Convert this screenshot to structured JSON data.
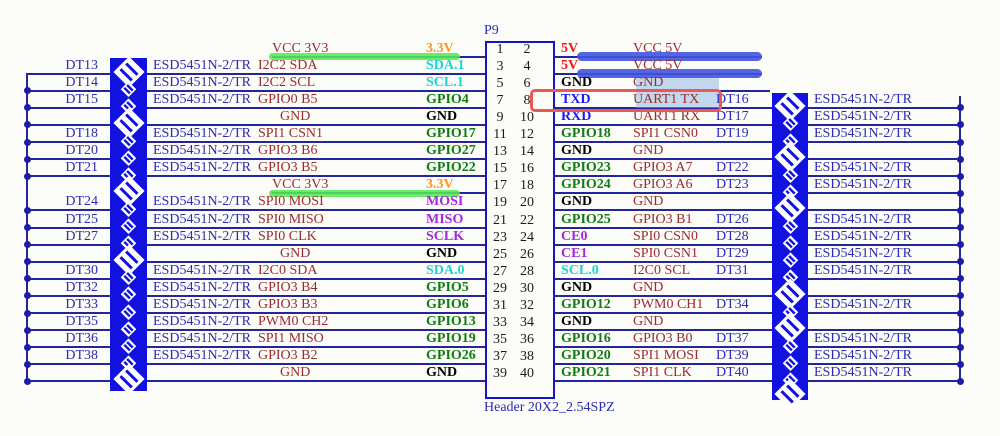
{
  "connector": {
    "designator": "P9",
    "footprint": "Header 20X2_2.54SPZ",
    "esd_part": "ESD5451N-2/TR"
  },
  "colors": {
    "wire": "#24249B",
    "schematic_blue": "#2B2BB5",
    "diode_band": "#1212E0",
    "net_name": "#9B2C2C",
    "label_green": "#117C11",
    "label_orange": "#FF9718",
    "label_cyan": "#1ED3D3",
    "label_violet": "#A428E0",
    "label_red": "#F81414",
    "label_blue": "#1919FF",
    "label_black": "#000000",
    "highlight_green": "#55E855",
    "highlight_blue": "#4353DE",
    "selection_fill": "#8CB4E1",
    "marker_red_box": "#EC5858"
  },
  "rows": [
    {
      "left": {
        "pin": 1,
        "label": "3.3V",
        "color": "orange",
        "net": "VCC_3V3",
        "dt": null,
        "esd": false,
        "conn": "label",
        "glyph": null,
        "hl": "green"
      },
      "right": {
        "pin": 2,
        "label": "5V",
        "color": "red",
        "net": "VCC_5V",
        "dt": null,
        "esd": false,
        "conn": "half",
        "glyph": null,
        "hl": "blue"
      }
    },
    {
      "left": {
        "pin": 3,
        "label": "SDA.1",
        "color": "cyan",
        "net": "I2C2_SDA",
        "dt": "DT13",
        "esd": true,
        "conn": "bus",
        "glyph": "b",
        "hl": null
      },
      "right": {
        "pin": 4,
        "label": "5V",
        "color": "red",
        "net": "VCC_5V",
        "dt": null,
        "esd": false,
        "conn": "half",
        "glyph": null,
        "hl": "blue"
      }
    },
    {
      "left": {
        "pin": 5,
        "label": "SCL.1",
        "color": "cyan",
        "net": "I2C2_SCL",
        "dt": "DT14",
        "esd": true,
        "conn": "bus",
        "glyph": "s",
        "hl": null
      },
      "right": {
        "pin": 6,
        "label": "GND",
        "color": "black",
        "net": "GND",
        "dt": null,
        "esd": false,
        "conn": "half",
        "glyph": null,
        "hl": null
      }
    },
    {
      "left": {
        "pin": 7,
        "label": "GPIO4",
        "color": "green",
        "net": "GPIO0_B5",
        "dt": "DT15",
        "esd": true,
        "conn": "bus",
        "glyph": "s",
        "hl": null
      },
      "right": {
        "pin": 8,
        "label": "TXD",
        "color": "blue",
        "net": "UART1_TX",
        "dt": "DT16",
        "esd": true,
        "conn": "bus",
        "glyph": "b",
        "hl": null,
        "selected": true,
        "marked": true
      }
    },
    {
      "left": {
        "pin": 9,
        "label": "GND",
        "color": "black",
        "net": "GND",
        "dt": null,
        "esd": false,
        "conn": "bus",
        "glyph": "b",
        "hl": null
      },
      "right": {
        "pin": 10,
        "label": "RXD",
        "color": "blue",
        "net": "UART1_RX",
        "dt": "DT17",
        "esd": true,
        "conn": "bus",
        "glyph": "s",
        "hl": null
      }
    },
    {
      "left": {
        "pin": 11,
        "label": "GPIO17",
        "color": "green",
        "net": "SPI1_CSN1",
        "dt": "DT18",
        "esd": true,
        "conn": "bus",
        "glyph": "s",
        "hl": null
      },
      "right": {
        "pin": 12,
        "label": "GPIO18",
        "color": "green",
        "net": "SPI1_CSN0",
        "dt": "DT19",
        "esd": true,
        "conn": "bus",
        "glyph": "s",
        "hl": null
      }
    },
    {
      "left": {
        "pin": 13,
        "label": "GPIO27",
        "color": "green",
        "net": "GPIO3_B6",
        "dt": "DT20",
        "esd": true,
        "conn": "bus",
        "glyph": "s",
        "hl": null
      },
      "right": {
        "pin": 14,
        "label": "GND",
        "color": "black",
        "net": "GND",
        "dt": null,
        "esd": false,
        "conn": "bus",
        "glyph": "b",
        "hl": null
      }
    },
    {
      "left": {
        "pin": 15,
        "label": "GPIO22",
        "color": "green",
        "net": "GPIO3_B5",
        "dt": "DT21",
        "esd": true,
        "conn": "bus",
        "glyph": "s",
        "hl": null
      },
      "right": {
        "pin": 16,
        "label": "GPIO23",
        "color": "green",
        "net": "GPIO3_A7",
        "dt": "DT22",
        "esd": true,
        "conn": "bus",
        "glyph": "s",
        "hl": null
      }
    },
    {
      "left": {
        "pin": 17,
        "label": "3.3V",
        "color": "orange",
        "net": "VCC_3V3",
        "dt": null,
        "esd": false,
        "conn": "label",
        "glyph": "b",
        "hl": "green"
      },
      "right": {
        "pin": 18,
        "label": "GPIO24",
        "color": "green",
        "net": "GPIO3_A6",
        "dt": "DT23",
        "esd": true,
        "conn": "bus",
        "glyph": "s",
        "hl": null
      }
    },
    {
      "left": {
        "pin": 19,
        "label": "MOSI",
        "color": "violet",
        "net": "SPI0_MOSI",
        "dt": "DT24",
        "esd": true,
        "conn": "bus",
        "glyph": "s",
        "hl": null
      },
      "right": {
        "pin": 20,
        "label": "GND",
        "color": "black",
        "net": "GND",
        "dt": null,
        "esd": false,
        "conn": "bus",
        "glyph": "b",
        "hl": null
      }
    },
    {
      "left": {
        "pin": 21,
        "label": "MISO",
        "color": "violet",
        "net": "SPI0_MISO",
        "dt": "DT25",
        "esd": true,
        "conn": "bus",
        "glyph": "s",
        "hl": null
      },
      "right": {
        "pin": 22,
        "label": "GPIO25",
        "color": "green",
        "net": "GPIO3_B1",
        "dt": "DT26",
        "esd": true,
        "conn": "bus",
        "glyph": "s",
        "hl": null
      }
    },
    {
      "left": {
        "pin": 23,
        "label": "SCLK",
        "color": "violet",
        "net": "SPI0_CLK",
        "dt": "DT27",
        "esd": true,
        "conn": "bus",
        "glyph": "s",
        "hl": null
      },
      "right": {
        "pin": 24,
        "label": "CE0",
        "color": "violet",
        "net": "SPI0_CSN0",
        "dt": "DT28",
        "esd": true,
        "conn": "bus",
        "glyph": "s",
        "hl": null
      }
    },
    {
      "left": {
        "pin": 25,
        "label": "GND",
        "color": "black",
        "net": "GND",
        "dt": null,
        "esd": false,
        "conn": "bus",
        "glyph": "b",
        "hl": null
      },
      "right": {
        "pin": 26,
        "label": "CE1",
        "color": "violet",
        "net": "SPI0_CSN1",
        "dt": "DT29",
        "esd": true,
        "conn": "bus",
        "glyph": "s",
        "hl": null
      }
    },
    {
      "left": {
        "pin": 27,
        "label": "SDA.0",
        "color": "cyan",
        "net": "I2C0_SDA",
        "dt": "DT30",
        "esd": true,
        "conn": "bus",
        "glyph": "s",
        "hl": null
      },
      "right": {
        "pin": 28,
        "label": "SCL.0",
        "color": "cyan",
        "net": "I2C0_SCL",
        "dt": "DT31",
        "esd": true,
        "conn": "bus",
        "glyph": "s",
        "hl": null
      }
    },
    {
      "left": {
        "pin": 29,
        "label": "GPIO5",
        "color": "green",
        "net": "GPIO3_B4",
        "dt": "DT32",
        "esd": true,
        "conn": "bus",
        "glyph": "s",
        "hl": null
      },
      "right": {
        "pin": 30,
        "label": "GND",
        "color": "black",
        "net": "GND",
        "dt": null,
        "esd": false,
        "conn": "bus",
        "glyph": "b",
        "hl": null
      }
    },
    {
      "left": {
        "pin": 31,
        "label": "GPIO6",
        "color": "green",
        "net": "GPIO3_B3",
        "dt": "DT33",
        "esd": true,
        "conn": "bus",
        "glyph": "s",
        "hl": null
      },
      "right": {
        "pin": 32,
        "label": "GPIO12",
        "color": "green",
        "net": "PWM0_CH1",
        "dt": "DT34",
        "esd": true,
        "conn": "bus",
        "glyph": "s",
        "hl": null
      }
    },
    {
      "left": {
        "pin": 33,
        "label": "GPIO13",
        "color": "green",
        "net": "PWM0_CH2",
        "dt": "DT35",
        "esd": true,
        "conn": "bus",
        "glyph": "s",
        "hl": null
      },
      "right": {
        "pin": 34,
        "label": "GND",
        "color": "black",
        "net": "GND",
        "dt": null,
        "esd": false,
        "conn": "bus",
        "glyph": "b",
        "hl": null
      }
    },
    {
      "left": {
        "pin": 35,
        "label": "GPIO19",
        "color": "green",
        "net": "SPI1_MISO",
        "dt": "DT36",
        "esd": true,
        "conn": "bus",
        "glyph": "s",
        "hl": null
      },
      "right": {
        "pin": 36,
        "label": "GPIO16",
        "color": "green",
        "net": "GPIO3_B0",
        "dt": "DT37",
        "esd": true,
        "conn": "bus",
        "glyph": "s",
        "hl": null
      }
    },
    {
      "left": {
        "pin": 37,
        "label": "GPIO26",
        "color": "green",
        "net": "GPIO3_B2",
        "dt": "DT38",
        "esd": true,
        "conn": "bus",
        "glyph": "s",
        "hl": null
      },
      "right": {
        "pin": 38,
        "label": "GPIO20",
        "color": "green",
        "net": "SPI1_MOSI",
        "dt": "DT39",
        "esd": true,
        "conn": "bus",
        "glyph": "s",
        "hl": null
      }
    },
    {
      "left": {
        "pin": 39,
        "label": "GND",
        "color": "black",
        "net": "GND",
        "dt": null,
        "esd": false,
        "conn": "bus",
        "glyph": "b",
        "hl": null
      },
      "right": {
        "pin": 40,
        "label": "GPIO21",
        "color": "green",
        "net": "SPI1_CLK",
        "dt": "DT40",
        "esd": true,
        "conn": "bus",
        "glyph": "s",
        "hl": null
      }
    }
  ]
}
